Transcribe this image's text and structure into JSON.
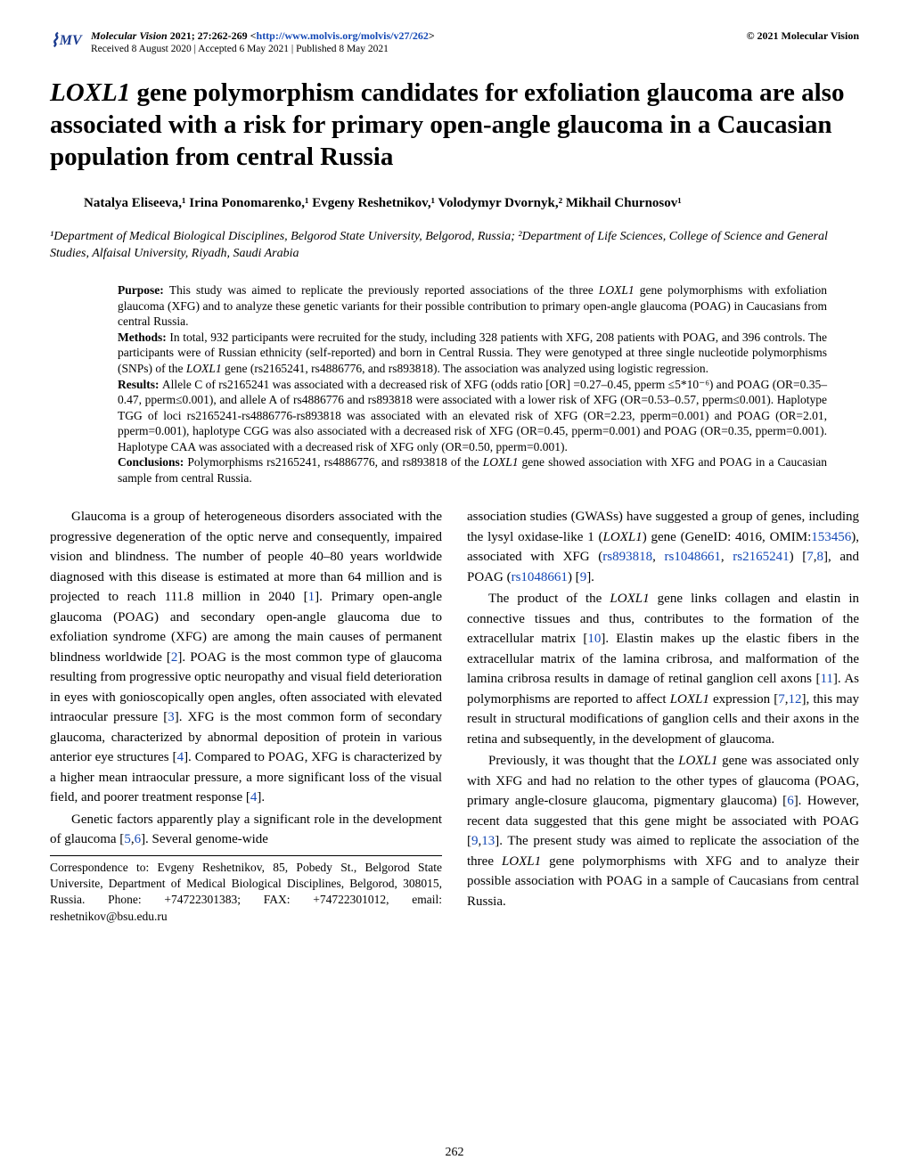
{
  "header": {
    "journal": "Molecular Vision",
    "citation": " 2021; 27:262-269 <",
    "url": "http://www.molvis.org/molvis/v27/262",
    "citation_close": ">",
    "copyright": "© 2021 Molecular Vision",
    "received": "Received 8 August 2020 | Accepted 6 May 2021 | Published 8 May 2021"
  },
  "title_gene": "LOXL1",
  "title_rest": " gene polymorphism candidates for exfoliation glaucoma are also associated with a risk for primary open-angle glaucoma in a Caucasian population from central Russia",
  "authors": "Natalya Eliseeva,¹ Irina Ponomarenko,¹ Evgeny Reshetnikov,¹ Volodymyr Dvornyk,² Mikhail Churnosov¹",
  "affiliations": "¹Department of Medical Biological Disciplines, Belgorod State University, Belgorod, Russia; ²Department of Life Sciences, College of Science and General Studies, Alfaisal University, Riyadh, Saudi Arabia",
  "abstract": {
    "purpose_label": "Purpose: ",
    "purpose": "This study was aimed to replicate the previously reported associations of the three ",
    "purpose_gene": "LOXL1",
    "purpose2": " gene polymorphisms with exfoliation glaucoma (XFG) and to analyze these genetic variants for their possible contribution to primary open-angle glaucoma (POAG) in Caucasians from central Russia.",
    "methods_label": "Methods: ",
    "methods": "In total, 932 participants were recruited for the study, including 328 patients with XFG, 208 patients with POAG, and 396 controls. The participants were of Russian ethnicity (self-reported) and born in Central Russia. They were genotyped at three single nucleotide polymorphisms (SNPs) of the ",
    "methods_gene": "LOXL1",
    "methods2": " gene (rs2165241, rs4886776, and rs893818). The association was analyzed using logistic regression.",
    "results_label": "Results: ",
    "results": "Allele C of rs2165241 was associated with a decreased risk of XFG (odds ratio [OR] =0.27–0.45, pperm ≤5*10⁻⁶) and POAG (OR=0.35–0.47, pperm≤0.001), and allele A of rs4886776 and rs893818 were associated with a lower risk of XFG (OR=0.53–0.57, pperm≤0.001). Haplotype TGG of loci rs2165241-rs4886776-rs893818 was associated with an elevated risk of XFG (OR=2.23, pperm=0.001) and POAG (OR=2.01, pperm=0.001), haplotype CGG was also associated with a decreased risk of XFG (OR=0.45, pperm=0.001) and POAG (OR=0.35, pperm=0.001). Haplotype CAA was associated with a decreased risk of XFG only (OR=0.50, pperm=0.001).",
    "conclusions_label": "Conclusions: ",
    "conclusions": "Polymorphisms rs2165241, rs4886776, and rs893818 of the ",
    "conclusions_gene": "LOXL1",
    "conclusions2": " gene showed association with XFG and POAG in a Caucasian sample from central Russia."
  },
  "body": {
    "p1a": "Glaucoma is a group of heterogeneous disorders associated with the progressive degeneration of the optic nerve and consequently, impaired vision and blindness. The number of people 40–80 years worldwide diagnosed with this disease is estimated at more than 64 million and is projected to reach 111.8 million in 2040 [",
    "r1": "1",
    "p1b": "]. Primary open-angle glaucoma (POAG) and secondary open-angle glaucoma due to exfoliation syndrome (XFG) are among the main causes of permanent blindness worldwide [",
    "r2": "2",
    "p1c": "]. POAG is the most common type of glaucoma resulting from progressive optic neuropathy and visual field deterioration in eyes with gonioscopically open angles, often associated with elevated intraocular pressure [",
    "r3": "3",
    "p1d": "]. XFG is the most common form of secondary glaucoma, characterized by abnormal deposition of protein in various anterior eye structures [",
    "r4": "4",
    "p1e": "]. Compared to POAG, XFG is characterized by a higher mean intraocular pressure, a more significant loss of the visual field, and poorer treatment response [",
    "r4b": "4",
    "p1f": "].",
    "p2a": "Genetic factors apparently play a significant role in the development of glaucoma [",
    "r5": "5",
    "p2b": ",",
    "r6": "6",
    "p2c": "]. Several genome-wide",
    "p3a": "association studies (GWASs) have suggested a group of genes, including the lysyl oxidase-like 1 (",
    "gene1": "LOXL1",
    "p3b": ") gene (GeneID: 4016, OMIM:",
    "omim": "153456",
    "p3c": "), associated with XFG (",
    "rs1": "rs893818",
    "p3d": ", ",
    "rs2": "rs1048661",
    "p3e": ", ",
    "rs3": "rs2165241",
    "p3f": ") [",
    "r7": "7",
    "p3g": ",",
    "r8": "8",
    "p3h": "], and POAG (",
    "rs4": "rs1048661",
    "p3i": ") [",
    "r9": "9",
    "p3j": "].",
    "p4a": "The product of the ",
    "gene2": "LOXL1",
    "p4b": " gene links collagen and elastin in connective tissues and thus, contributes to the formation of the extracellular matrix [",
    "r10": "10",
    "p4c": "]. Elastin makes up the elastic fibers in the extracellular matrix of the lamina cribrosa, and malformation of the lamina cribrosa results in damage of retinal ganglion cell axons [",
    "r11": "11",
    "p4d": "]. As polymorphisms are reported to affect ",
    "gene3": "LOXL1",
    "p4e": " expression [",
    "r7b": "7",
    "p4f": ",",
    "r12": "12",
    "p4g": "], this may result in structural modifications of ganglion cells and their axons in the retina and subsequently, in the development of glaucoma.",
    "p5a": "Previously, it was thought that the ",
    "gene4": "LOXL1",
    "p5b": " gene was associated only with XFG and had no relation to the other types of glaucoma (POAG, primary angle-closure glaucoma, pigmentary glaucoma) [",
    "r6b": "6",
    "p5c": "]. However, recent data suggested that this gene might be associated with POAG [",
    "r9b": "9",
    "p5d": ",",
    "r13": "13",
    "p5e": "]. The present study was aimed to replicate the association of the three ",
    "gene5": "LOXL1",
    "p5f": " gene polymorphisms with XFG and to analyze their possible association with POAG in a sample of Caucasians from central Russia."
  },
  "correspondence": "Correspondence to: Evgeny Reshetnikov, 85, Pobedy St., Belgorod State Universite, Department of Medical Biological Disciplines, Belgorod, 308015, Russia. Phone: +74722301383; FAX: +74722301012, email: reshetnikov@bsu.edu.ru",
  "page_number": "262"
}
